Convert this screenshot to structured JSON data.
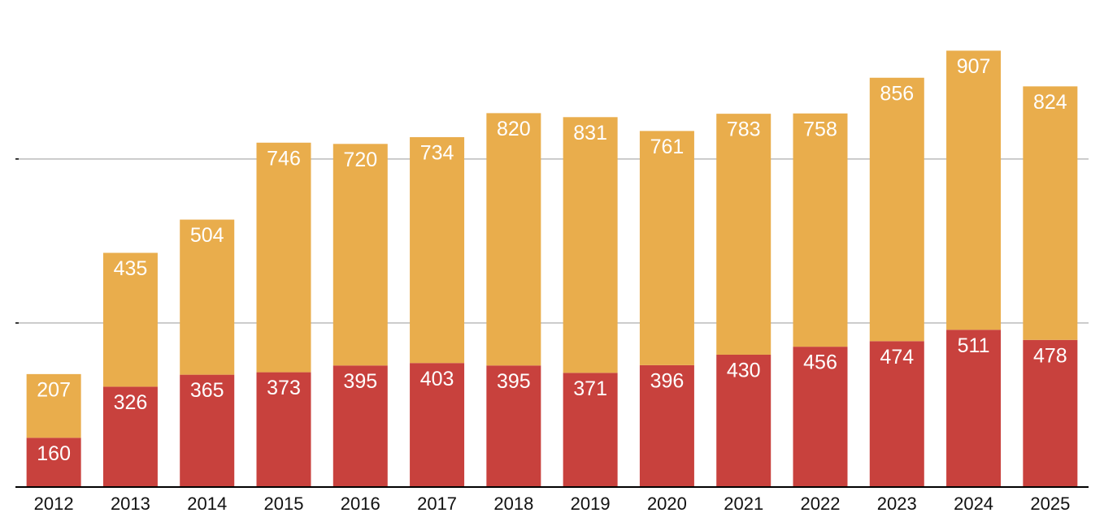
{
  "chart_data": {
    "type": "stacked-bar",
    "categories": [
      "2012",
      "2013",
      "2014",
      "2015",
      "2016",
      "2017",
      "2018",
      "2019",
      "2020",
      "2021",
      "2022",
      "2023",
      "2024",
      "2025"
    ],
    "series": [
      {
        "color": "#c8413d",
        "values": [
          160,
          326,
          365,
          373,
          395,
          403,
          395,
          371,
          396,
          430,
          456,
          474,
          511,
          478
        ]
      },
      {
        "color": "#e9ad4c",
        "values": [
          207,
          435,
          504,
          746,
          720,
          734,
          820,
          831,
          761,
          783,
          758,
          856,
          907,
          824
        ]
      }
    ],
    "ylim": [
      0,
      1580
    ],
    "yticks": [
      0,
      533,
      1066
    ],
    "grid": true
  }
}
